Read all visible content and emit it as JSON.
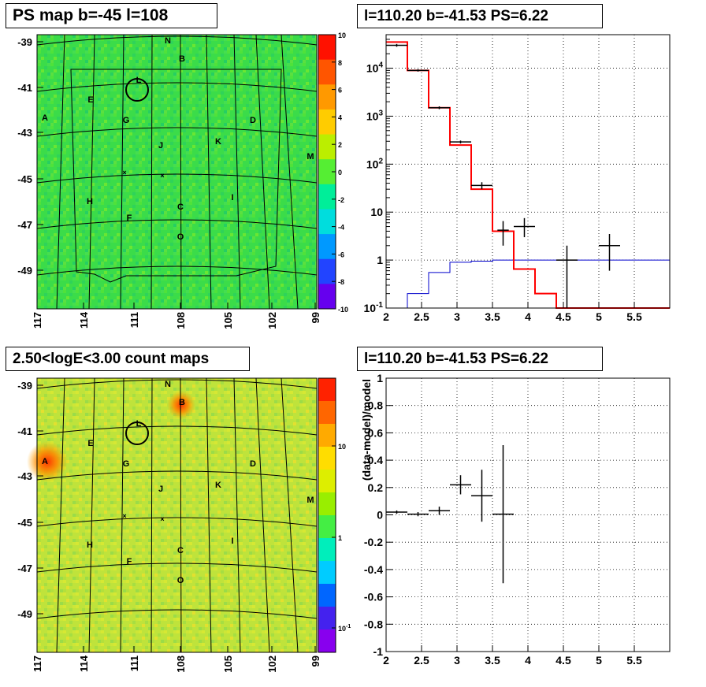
{
  "panels": {
    "map_top_title": "PS map b=-45 l=108",
    "spec_title": "l=110.20 b=-41.53 PS=6.22",
    "map_bottom_title": "2.50<logE<3.00 count maps",
    "resid_title": "l=110.20 b=-41.53 PS=6.22"
  },
  "map_axes": {
    "lat_ticks": [
      "-39",
      "-41",
      "-43",
      "-45",
      "-47",
      "-49"
    ],
    "lon_ticks": [
      "117",
      "114",
      "111",
      "108",
      "105",
      "102",
      "99"
    ]
  },
  "map_sources": [
    "N",
    "B",
    "L",
    "E",
    "A",
    "G",
    "D",
    "J",
    "K",
    "M",
    "H",
    "C",
    "I",
    "F",
    "O"
  ],
  "colors": {
    "top_map_bg": "#33dd44",
    "bottom_map_bg": "#bde33a",
    "model_line": "#ff0000",
    "bg_line": "#0000cc"
  },
  "colorbars": {
    "top": {
      "labels": [
        "10",
        "8",
        "6",
        "4",
        "2",
        "0",
        "-2",
        "-4",
        "-6",
        "-8",
        "-10"
      ],
      "colors": [
        "#ff1100",
        "#ff5500",
        "#ff9900",
        "#ffcc00",
        "#bbee00",
        "#55ee33",
        "#00ee99",
        "#00dddd",
        "#0099ff",
        "#2244ff",
        "#6600ee"
      ]
    },
    "bottom": {
      "labels": [
        "10",
        "1",
        "10^-1"
      ],
      "colors": [
        "#ff2200",
        "#ff6600",
        "#ffaa00",
        "#ffdd00",
        "#ddee00",
        "#99ee00",
        "#44ee44",
        "#00eebb",
        "#00ccff",
        "#0066ff",
        "#4422ee",
        "#8800ee"
      ]
    }
  },
  "chart_data": [
    {
      "type": "line",
      "scale": "log-y",
      "xlim": [
        2,
        6
      ],
      "ylim": [
        0.1,
        50000
      ],
      "x_ticks": [
        "2",
        "2.5",
        "3",
        "3.5",
        "4",
        "4.5",
        "5",
        "5.5"
      ],
      "y_ticks": [
        {
          "v": 10000,
          "b": "10",
          "e": "4"
        },
        {
          "v": 1000,
          "b": "10",
          "e": "3"
        },
        {
          "v": 100,
          "b": "10",
          "e": "2"
        },
        {
          "v": 10,
          "b": "10",
          "e": ""
        },
        {
          "v": 1,
          "b": "1",
          "e": ""
        },
        {
          "v": 0.1,
          "b": "10",
          "e": "-1"
        }
      ],
      "grid": true,
      "model_steps": [
        [
          1.9,
          2.3,
          35000
        ],
        [
          2.3,
          2.6,
          9000
        ],
        [
          2.6,
          2.9,
          1500
        ],
        [
          2.9,
          3.2,
          250
        ],
        [
          3.2,
          3.5,
          30
        ],
        [
          3.5,
          3.8,
          4
        ],
        [
          3.8,
          4.1,
          0.65
        ],
        [
          4.1,
          4.4,
          0.2
        ],
        [
          4.4,
          6.0,
          0.1
        ]
      ],
      "bg_steps": [
        [
          2.3,
          2.6,
          0.2
        ],
        [
          2.6,
          2.9,
          0.55
        ],
        [
          2.9,
          3.2,
          0.9
        ],
        [
          3.2,
          3.5,
          0.95
        ],
        [
          3.5,
          4.4,
          1.0
        ],
        [
          4.4,
          6.0,
          1.0
        ]
      ],
      "data_points": [
        {
          "x": 2.15,
          "y": 30000,
          "xerr": 0.15,
          "ylo": 28000,
          "yhi": 32000
        },
        {
          "x": 2.45,
          "y": 9000,
          "xerr": 0.15,
          "ylo": 8500,
          "yhi": 9500
        },
        {
          "x": 2.75,
          "y": 1500,
          "xerr": 0.15,
          "ylo": 1400,
          "yhi": 1600
        },
        {
          "x": 3.05,
          "y": 290,
          "xerr": 0.15,
          "ylo": 270,
          "yhi": 310
        },
        {
          "x": 3.35,
          "y": 36,
          "xerr": 0.15,
          "ylo": 30,
          "yhi": 42
        },
        {
          "x": 3.65,
          "y": 4.2,
          "xerr": 0.08,
          "ylo": 2,
          "yhi": 6.5
        },
        {
          "x": 3.95,
          "y": 5,
          "xerr": 0.15,
          "ylo": 3,
          "yhi": 7.5
        },
        {
          "x": 4.55,
          "y": 1,
          "xerr": 0.15,
          "ylo": 0.1,
          "yhi": 2
        },
        {
          "x": 5.15,
          "y": 2,
          "xerr": 0.15,
          "ylo": 0.6,
          "yhi": 3.5
        }
      ]
    },
    {
      "type": "scatter",
      "xlim": [
        2,
        6
      ],
      "ylim": [
        -1,
        1
      ],
      "x_ticks": [
        "2",
        "2.5",
        "3",
        "3.5",
        "4",
        "4.5",
        "5",
        "5.5"
      ],
      "y_ticks": [
        "1",
        "0.8",
        "0.6",
        "0.4",
        "0.2",
        "0",
        "-0.2",
        "-0.4",
        "-0.6",
        "-0.8",
        "-1"
      ],
      "ylabel": "(data-model)/model",
      "grid": true,
      "data_points": [
        {
          "x": 2.15,
          "y": 0.02,
          "xerr": 0.15,
          "yerr": 0.012
        },
        {
          "x": 2.45,
          "y": 0.005,
          "xerr": 0.15,
          "yerr": 0.015
        },
        {
          "x": 2.75,
          "y": 0.03,
          "xerr": 0.15,
          "yerr": 0.03
        },
        {
          "x": 3.05,
          "y": 0.22,
          "xerr": 0.15,
          "yerr": 0.07
        },
        {
          "x": 3.35,
          "y": 0.14,
          "xerr": 0.15,
          "yerr": 0.19
        },
        {
          "x": 3.65,
          "y": 0.005,
          "xerr": 0.15,
          "yerr": 0.505
        }
      ]
    }
  ]
}
